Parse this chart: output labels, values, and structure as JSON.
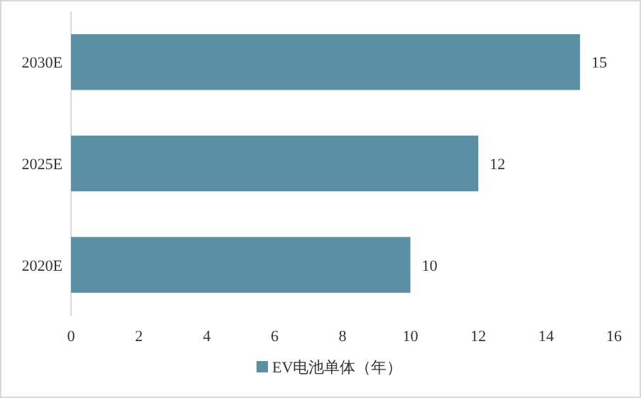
{
  "chart_data": {
    "type": "bar",
    "orientation": "horizontal",
    "categories": [
      "2030E",
      "2025E",
      "2020E"
    ],
    "series": [
      {
        "name": "EV电池单体（年）",
        "color": "#5b8fa3",
        "values": [
          15,
          12,
          10
        ]
      }
    ],
    "xlim": [
      0,
      16
    ],
    "xticks": [
      0,
      2,
      4,
      6,
      8,
      10,
      12,
      14,
      16
    ],
    "data_labels": true,
    "legend": "bottom",
    "grid": false
  }
}
